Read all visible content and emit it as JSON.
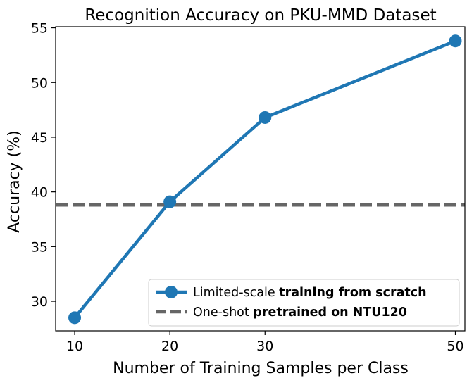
{
  "chart_data": {
    "type": "line",
    "title": "Recognition Accuracy on PKU-MMD Dataset",
    "xlabel": "Number of Training Samples per Class",
    "ylabel": "Accuracy (%)",
    "xlim": [
      8,
      51
    ],
    "ylim": [
      27.3,
      55.1
    ],
    "xticks": [
      10,
      20,
      30,
      50
    ],
    "yticks": [
      30,
      35,
      40,
      45,
      50,
      55
    ],
    "grid": false,
    "legend_position": "lower-right",
    "series": [
      {
        "name": "Limited-scale training from scratch",
        "name_parts": [
          "Limited-scale ",
          "training from scratch"
        ],
        "style": "solid-line-circle-markers",
        "color": "#1f77b4",
        "x": [
          10,
          20,
          30,
          50
        ],
        "y": [
          28.5,
          39.1,
          46.8,
          53.8
        ]
      },
      {
        "name": "One-shot pretrained on NTU120",
        "name_parts": [
          "One-shot ",
          "pretrained on NTU120"
        ],
        "style": "dashed-horizontal-line",
        "color": "#666666",
        "y": 38.8
      }
    ]
  }
}
